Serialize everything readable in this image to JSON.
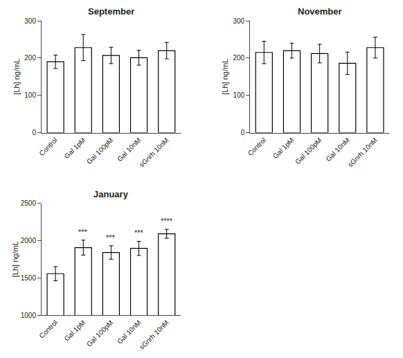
{
  "chart_data": [
    {
      "type": "bar",
      "title": "September",
      "categories": [
        "Control",
        "Gal 1pM",
        "Gal 100pM",
        "Gal 10nM",
        "sGnrh 10nM"
      ],
      "values": [
        190,
        228,
        207,
        201,
        220
      ],
      "errors": [
        18,
        35,
        22,
        20,
        22
      ],
      "ylim": [
        0,
        300
      ],
      "yticks": [
        0,
        100,
        200,
        300
      ],
      "ylabel": "[Lh] ng/mL",
      "color": "white",
      "grid": false
    },
    {
      "type": "bar",
      "title": "November",
      "categories": [
        "Control",
        "Gal 1pM",
        "Gal 100pM",
        "Gal 10nM",
        "sGnrh 10nM"
      ],
      "values": [
        215,
        220,
        212,
        186,
        228
      ],
      "errors": [
        30,
        20,
        25,
        30,
        28
      ],
      "ylim": [
        0,
        300
      ],
      "yticks": [
        0,
        100,
        200,
        300
      ],
      "ylabel": "[Lh] ng/mL",
      "color": "white",
      "grid": false
    },
    {
      "type": "bar",
      "title": "January",
      "categories": [
        "Control",
        "Gal 1pM",
        "Gal 100pM",
        "Gal 10nM",
        "sGnrh 10nM"
      ],
      "values": [
        1555,
        1905,
        1840,
        1895,
        2090
      ],
      "errors": [
        95,
        100,
        90,
        95,
        60
      ],
      "ylim": [
        1000,
        2500
      ],
      "yticks": [
        1000,
        1500,
        2000,
        2500
      ],
      "ylabel": "[Lh] ng/mL",
      "color": "white",
      "grid": false,
      "annotations": [
        {
          "x": "Gal 1pM",
          "text": "***"
        },
        {
          "x": "Gal 100pM",
          "text": "***"
        },
        {
          "x": "Gal 10nM",
          "text": "***"
        },
        {
          "x": "sGnrh 10nM",
          "text": "****"
        }
      ]
    }
  ]
}
